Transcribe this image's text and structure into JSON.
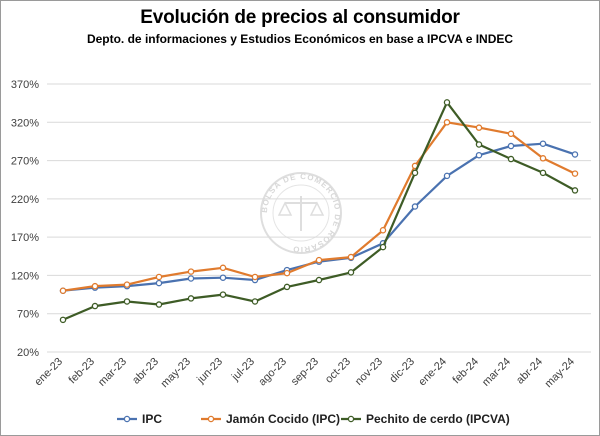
{
  "title": "Evolución de precios al consumidor",
  "subtitle": "Depto. de informaciones y Estudios Económicos en base a IPCVA e INDEC",
  "watermark": "BOLSA DE COMERCIO DE ROSARIO",
  "colors": {
    "grid": "#d9d9d9",
    "axis_text": "#404040"
  },
  "chart_data": {
    "type": "line",
    "title": "Evolución de precios al consumidor",
    "subtitle": "Depto. de informaciones y Estudios Económicos en base a IPCVA e INDEC",
    "xlabel": "",
    "ylabel": "",
    "categories": [
      "ene-23",
      "feb-23",
      "mar-23",
      "abr-23",
      "may-23",
      "jun-23",
      "jul-23",
      "ago-23",
      "sep-23",
      "oct-23",
      "nov-23",
      "dic-23",
      "ene-24",
      "feb-24",
      "mar-24",
      "abr-24",
      "may-24"
    ],
    "y_ticks": [
      "20%",
      "70%",
      "120%",
      "170%",
      "220%",
      "270%",
      "320%",
      "370%"
    ],
    "ylim": [
      20,
      370
    ],
    "grid": true,
    "legend_position": "bottom",
    "series": [
      {
        "name": "IPC",
        "color": "#4a72b0",
        "values": [
          100,
          104,
          106,
          110,
          116,
          117,
          114,
          127,
          138,
          143,
          162,
          210,
          250,
          277,
          289,
          292,
          278
        ]
      },
      {
        "name": "Jamón Cocido (IPC)",
        "color": "#e07b2e",
        "values": [
          100,
          106,
          108,
          118,
          125,
          130,
          118,
          123,
          140,
          144,
          179,
          263,
          320,
          313,
          305,
          273,
          253
        ]
      },
      {
        "name": "Pechito de cerdo (IPCVA)",
        "color": "#3e5c26",
        "values": [
          62,
          80,
          86,
          82,
          90,
          95,
          86,
          105,
          114,
          124,
          157,
          254,
          346,
          291,
          272,
          254,
          231
        ]
      }
    ]
  }
}
